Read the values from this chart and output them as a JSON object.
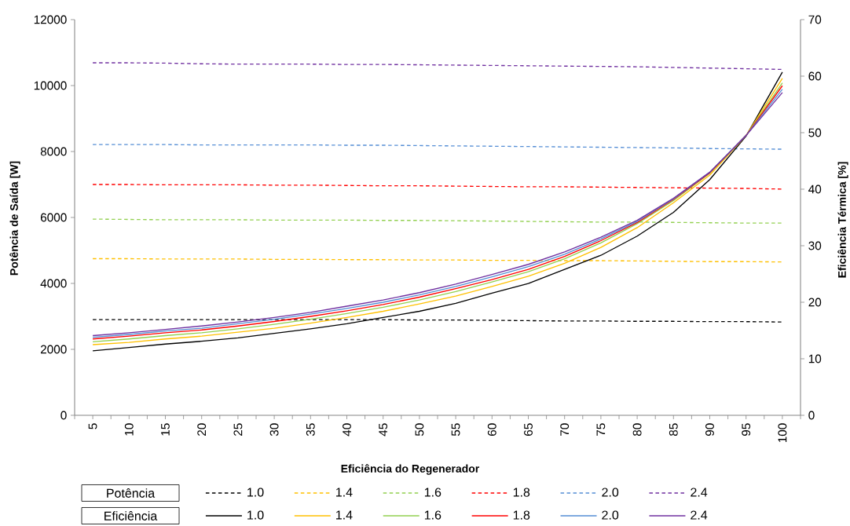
{
  "chart_data": {
    "type": "line",
    "xlabel": "Eficiência do Regenerador",
    "ylabel": "Potência de Saída [W]",
    "y2label": "Eficiência Térmica [%]",
    "categories": [
      "5",
      "10",
      "15",
      "20",
      "25",
      "30",
      "35",
      "40",
      "45",
      "50",
      "55",
      "60",
      "65",
      "70",
      "75",
      "80",
      "85",
      "90",
      "95",
      "100"
    ],
    "ylim": [
      0,
      12000
    ],
    "yticks": [
      0,
      2000,
      4000,
      6000,
      8000,
      10000,
      12000
    ],
    "y2lim": [
      0,
      70
    ],
    "y2ticks": [
      0,
      10,
      20,
      30,
      40,
      50,
      60,
      70
    ],
    "legend": "bottom",
    "marker": "none",
    "annotations": [
      "Potência",
      "Eficiência"
    ],
    "series": [
      {
        "name": "1.0",
        "color": "#000000",
        "line_style": "dashed",
        "values": [
          2900,
          2900,
          2900,
          2900,
          2900,
          2900,
          2900,
          2900,
          2900,
          2890,
          2890,
          2880,
          2870,
          2860,
          2860,
          2850,
          2850,
          2840,
          2840,
          2830
        ]
      },
      {
        "name": "1.4",
        "color": "#ffc000",
        "line_style": "dashed",
        "values": [
          4750,
          4750,
          4740,
          4740,
          4740,
          4730,
          4730,
          4720,
          4720,
          4710,
          4710,
          4700,
          4700,
          4690,
          4690,
          4680,
          4670,
          4660,
          4660,
          4650
        ]
      },
      {
        "name": "1.6",
        "color": "#92d050",
        "line_style": "dashed",
        "values": [
          5950,
          5940,
          5930,
          5930,
          5930,
          5920,
          5920,
          5920,
          5910,
          5910,
          5900,
          5890,
          5880,
          5870,
          5860,
          5860,
          5850,
          5840,
          5830,
          5830
        ]
      },
      {
        "name": "1.8",
        "color": "#ff0000",
        "line_style": "dashed",
        "values": [
          7000,
          7000,
          6990,
          6990,
          6990,
          6980,
          6980,
          6970,
          6960,
          6960,
          6950,
          6940,
          6930,
          6930,
          6920,
          6910,
          6900,
          6890,
          6880,
          6860
        ]
      },
      {
        "name": "2.0",
        "color": "#558ed5",
        "line_style": "dashed",
        "values": [
          8210,
          8210,
          8210,
          8200,
          8200,
          8200,
          8200,
          8190,
          8190,
          8180,
          8170,
          8160,
          8150,
          8140,
          8130,
          8120,
          8110,
          8090,
          8080,
          8070
        ]
      },
      {
        "name": "2.4",
        "color": "#7030a0",
        "line_style": "dashed",
        "values": [
          10690,
          10690,
          10680,
          10660,
          10650,
          10650,
          10650,
          10640,
          10640,
          10630,
          10620,
          10610,
          10600,
          10590,
          10580,
          10570,
          10550,
          10530,
          10510,
          10490
        ]
      },
      {
        "name": "1.0",
        "color": "#000000",
        "line_style": "solid",
        "axis": "y2",
        "values": [
          11.4,
          12.0,
          12.6,
          13.1,
          13.7,
          14.5,
          15.3,
          16.2,
          17.3,
          18.4,
          19.8,
          21.6,
          23.3,
          25.8,
          28.3,
          31.7,
          35.9,
          41.7,
          49.4,
          60.7
        ]
      },
      {
        "name": "1.4",
        "color": "#ffc000",
        "line_style": "solid",
        "axis": "y2",
        "values": [
          12.5,
          12.9,
          13.5,
          14.0,
          14.7,
          15.4,
          16.3,
          17.3,
          18.4,
          19.7,
          21.1,
          22.8,
          24.6,
          26.9,
          29.7,
          33.2,
          37.6,
          42.5,
          49.5,
          59.6
        ]
      },
      {
        "name": "1.6",
        "color": "#92d050",
        "line_style": "solid",
        "axis": "y2",
        "values": [
          13.0,
          13.5,
          14.1,
          14.6,
          15.3,
          16.1,
          17.0,
          18.0,
          19.1,
          20.4,
          21.9,
          23.6,
          25.4,
          27.7,
          30.5,
          33.9,
          38.0,
          42.8,
          49.5,
          58.8
        ]
      },
      {
        "name": "1.8",
        "color": "#ff0000",
        "line_style": "solid",
        "axis": "y2",
        "values": [
          13.5,
          14.0,
          14.6,
          15.1,
          15.8,
          16.6,
          17.5,
          18.5,
          19.6,
          20.9,
          22.4,
          24.0,
          25.8,
          28.1,
          30.9,
          34.1,
          38.2,
          42.9,
          49.5,
          58.3
        ]
      },
      {
        "name": "2.0",
        "color": "#558ed5",
        "line_style": "solid",
        "axis": "y2",
        "values": [
          13.8,
          14.3,
          14.9,
          15.4,
          16.2,
          17.0,
          17.9,
          18.9,
          20.0,
          21.3,
          22.8,
          24.5,
          26.3,
          28.5,
          31.2,
          34.3,
          38.3,
          43.0,
          49.5,
          57.7
        ]
      },
      {
        "name": "2.4",
        "color": "#7030a0",
        "line_style": "solid",
        "axis": "y2",
        "values": [
          14.1,
          14.6,
          15.2,
          15.8,
          16.5,
          17.3,
          18.2,
          19.3,
          20.4,
          21.7,
          23.2,
          24.9,
          26.7,
          28.9,
          31.5,
          34.5,
          38.4,
          43.0,
          49.5,
          57.1
        ]
      }
    ]
  }
}
